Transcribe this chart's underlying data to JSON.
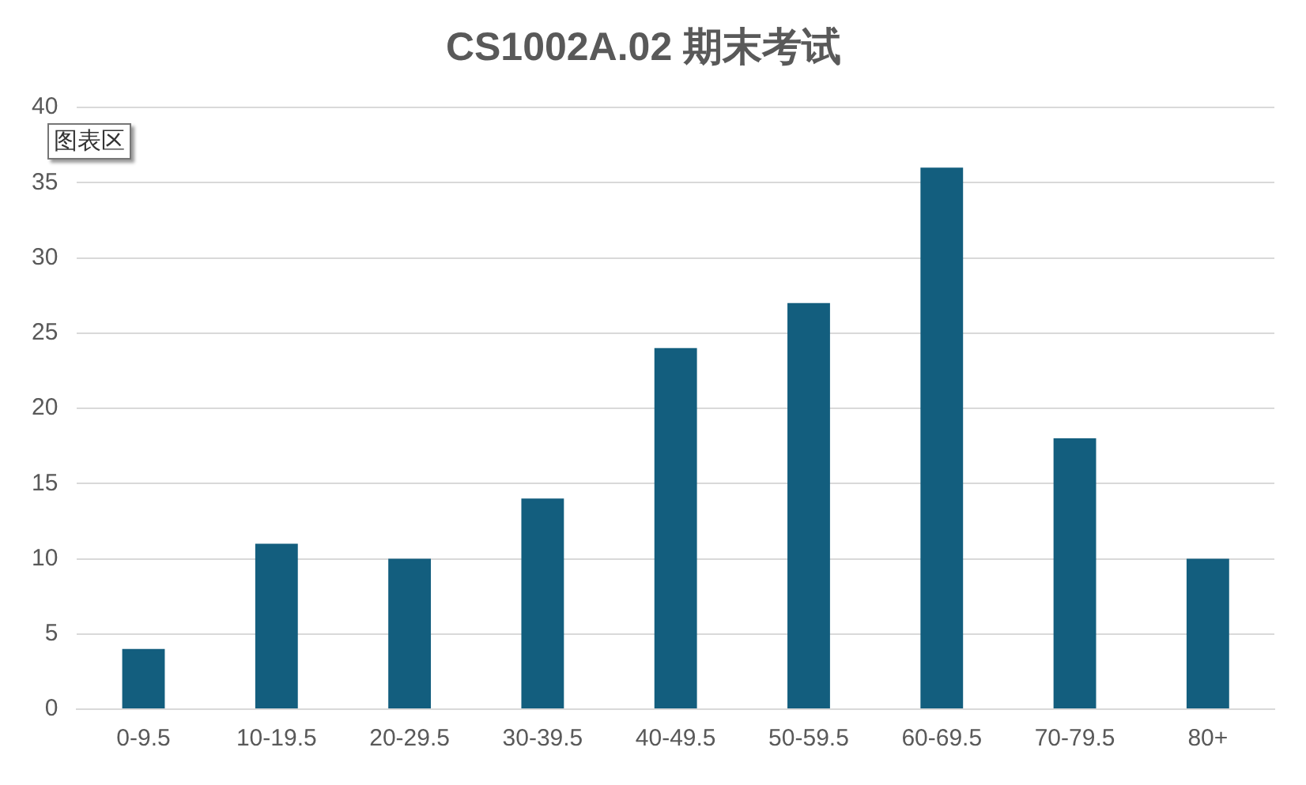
{
  "chart_data": {
    "type": "bar",
    "title": "CS1002A.02 期末考试",
    "categories": [
      "0-9.5",
      "10-19.5",
      "20-29.5",
      "30-39.5",
      "40-49.5",
      "50-59.5",
      "60-69.5",
      "70-79.5",
      "80+"
    ],
    "values": [
      4,
      11,
      10,
      14,
      24,
      27,
      36,
      18,
      10
    ],
    "color": "#135e7e",
    "ylim": [
      0,
      40
    ],
    "yticks": [
      0,
      5,
      10,
      15,
      20,
      25,
      30,
      35,
      40
    ],
    "grid": "y",
    "annotations": [
      "图表区"
    ]
  }
}
